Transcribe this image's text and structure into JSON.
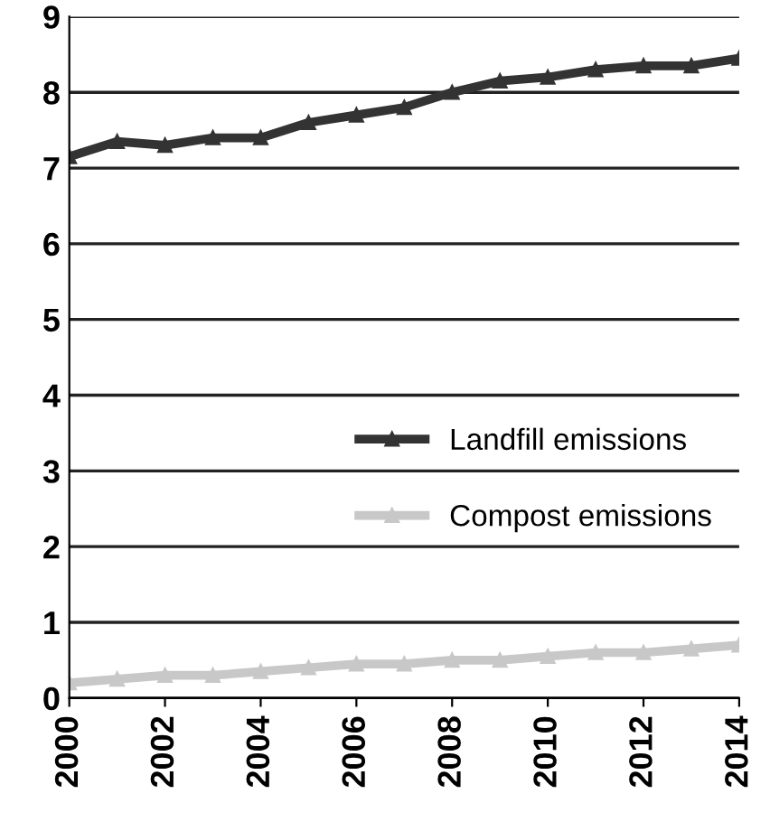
{
  "chart_data": {
    "type": "line",
    "x": [
      2000,
      2001,
      2002,
      2003,
      2004,
      2005,
      2006,
      2007,
      2008,
      2009,
      2010,
      2011,
      2012,
      2013,
      2014
    ],
    "series": [
      {
        "name": "Landfill emissions",
        "color": "#333333",
        "values": [
          7.15,
          7.35,
          7.3,
          7.4,
          7.4,
          7.6,
          7.7,
          7.8,
          8.0,
          8.15,
          8.2,
          8.3,
          8.35,
          8.35,
          8.45
        ]
      },
      {
        "name": "Compost emissions",
        "color": "#c8c8c8",
        "values": [
          0.2,
          0.25,
          0.3,
          0.3,
          0.35,
          0.4,
          0.45,
          0.45,
          0.5,
          0.5,
          0.55,
          0.6,
          0.6,
          0.65,
          0.7
        ]
      }
    ],
    "xlim": [
      2000,
      2014
    ],
    "xticks": [
      2000,
      2002,
      2004,
      2006,
      2008,
      2010,
      2012,
      2014
    ],
    "ylim": [
      0,
      9
    ],
    "yticks": [
      0,
      1,
      2,
      3,
      4,
      5,
      6,
      7,
      8,
      9
    ],
    "grid": "y",
    "legend": "right",
    "marker": "triangle",
    "line_style": "solid"
  }
}
